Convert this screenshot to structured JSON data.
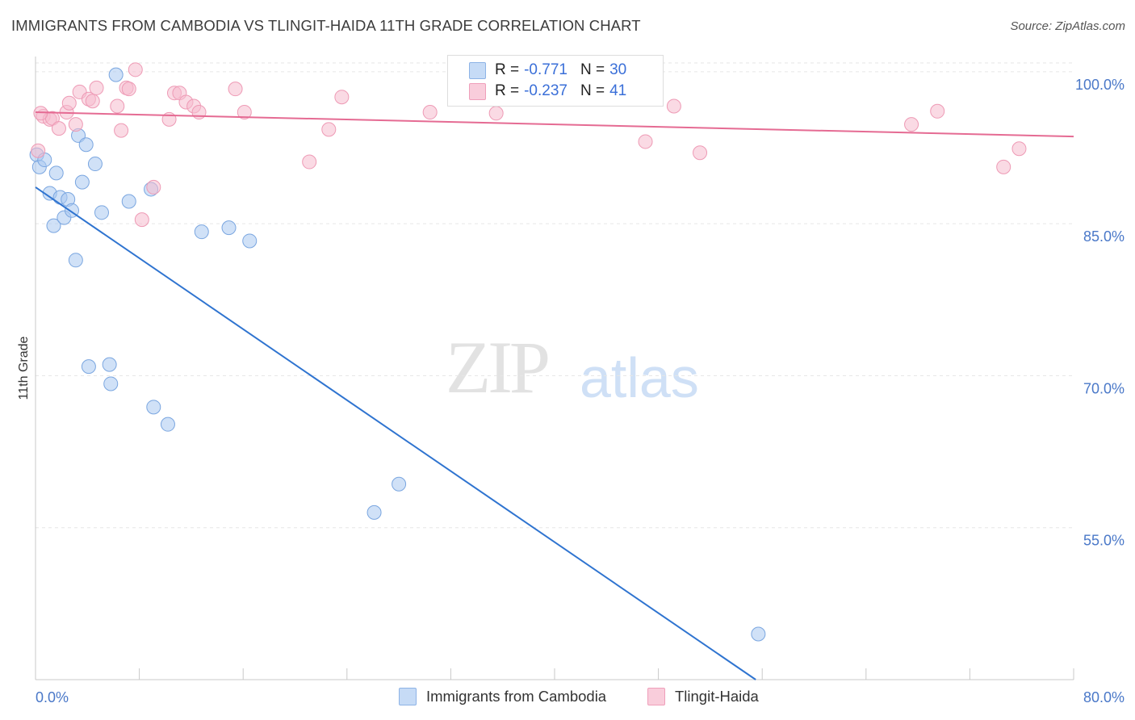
{
  "header": {
    "title": "IMMIGRANTS FROM CAMBODIA VS TLINGIT-HAIDA 11TH GRADE CORRELATION CHART",
    "source": "Source: ZipAtlas.com"
  },
  "watermark": {
    "zip": "ZIP",
    "atlas": "atlas"
  },
  "legend_stats": [
    {
      "r_label": "R =",
      "r_value": "-0.771",
      "n_label": "N =",
      "n_value": "30",
      "color": "#aac8f0"
    },
    {
      "r_label": "R =",
      "r_value": "-0.237",
      "n_label": "N =",
      "n_value": "41",
      "color": "#f6bccd"
    }
  ],
  "chart_data": {
    "type": "scatter",
    "xlabel": "",
    "ylabel": "11th Grade",
    "xlim": [
      0,
      80
    ],
    "ylim": [
      40,
      101.5
    ],
    "x_tick_labels": [
      "0.0%",
      "80.0%"
    ],
    "y_ticks": [
      55,
      70,
      85,
      100
    ],
    "y_tick_labels": [
      "55.0%",
      "70.0%",
      "85.0%",
      "100.0%"
    ],
    "grid": true,
    "legend_position": "bottom",
    "series": [
      {
        "name": "Immigrants from Cambodia",
        "color": "#aac8f0",
        "stroke": "#7aa6e0",
        "line_color": "#2f74d0",
        "trend": {
          "x": [
            0,
            55.5
          ],
          "y": [
            88.6,
            40.0
          ]
        },
        "points": [
          [
            0.1,
            91.8
          ],
          [
            0.3,
            90.6
          ],
          [
            0.7,
            91.3
          ],
          [
            1.1,
            88.0
          ],
          [
            1.4,
            84.8
          ],
          [
            1.6,
            90.0
          ],
          [
            1.9,
            87.6
          ],
          [
            2.2,
            85.6
          ],
          [
            2.5,
            87.4
          ],
          [
            2.8,
            86.3
          ],
          [
            3.1,
            81.4
          ],
          [
            3.3,
            93.7
          ],
          [
            3.6,
            89.1
          ],
          [
            3.9,
            92.8
          ],
          [
            4.6,
            90.9
          ],
          [
            5.1,
            86.1
          ],
          [
            6.2,
            99.7
          ],
          [
            7.2,
            87.2
          ],
          [
            8.9,
            88.4
          ],
          [
            12.8,
            84.2
          ],
          [
            14.9,
            84.6
          ],
          [
            16.5,
            83.3
          ],
          [
            4.1,
            70.9
          ],
          [
            5.7,
            71.1
          ],
          [
            5.8,
            69.2
          ],
          [
            9.1,
            66.9
          ],
          [
            10.2,
            65.2
          ],
          [
            26.1,
            56.5
          ],
          [
            28.0,
            59.3
          ],
          [
            55.7,
            44.5
          ]
        ]
      },
      {
        "name": "Tlingit-Haida",
        "color": "#f6bccd",
        "stroke": "#ee9ab5",
        "line_color": "#e56b93",
        "trend": {
          "x": [
            0,
            80
          ],
          "y": [
            96.0,
            93.6
          ]
        },
        "points": [
          [
            0.2,
            92.2
          ],
          [
            0.6,
            95.6
          ],
          [
            1.1,
            95.3
          ],
          [
            1.3,
            95.4
          ],
          [
            1.8,
            94.4
          ],
          [
            2.4,
            96.0
          ],
          [
            2.6,
            96.9
          ],
          [
            3.1,
            94.8
          ],
          [
            3.4,
            98.0
          ],
          [
            4.1,
            97.3
          ],
          [
            4.4,
            97.1
          ],
          [
            4.7,
            98.4
          ],
          [
            6.3,
            96.6
          ],
          [
            6.6,
            94.2
          ],
          [
            7.0,
            98.4
          ],
          [
            7.2,
            98.3
          ],
          [
            7.7,
            100.2
          ],
          [
            8.2,
            85.4
          ],
          [
            9.1,
            88.6
          ],
          [
            10.3,
            95.3
          ],
          [
            10.7,
            97.9
          ],
          [
            11.1,
            97.9
          ],
          [
            11.6,
            97.0
          ],
          [
            12.2,
            96.6
          ],
          [
            12.6,
            96.0
          ],
          [
            15.4,
            98.3
          ],
          [
            16.1,
            96.0
          ],
          [
            21.1,
            91.1
          ],
          [
            22.6,
            94.3
          ],
          [
            23.6,
            97.5
          ],
          [
            30.4,
            96.0
          ],
          [
            35.5,
            95.9
          ],
          [
            36.7,
            100.0
          ],
          [
            47.0,
            93.1
          ],
          [
            49.2,
            96.6
          ],
          [
            51.2,
            92.0
          ],
          [
            67.5,
            94.8
          ],
          [
            69.5,
            96.1
          ],
          [
            74.6,
            90.6
          ],
          [
            75.8,
            92.4
          ],
          [
            0.4,
            95.9
          ]
        ]
      }
    ]
  },
  "bottom_legend": [
    {
      "label": "Immigrants from Cambodia",
      "color": "#c6dbf6",
      "stroke": "#8db3e6"
    },
    {
      "label": "Tlingit-Haida",
      "color": "#f9cddb",
      "stroke": "#ef9fba"
    }
  ]
}
